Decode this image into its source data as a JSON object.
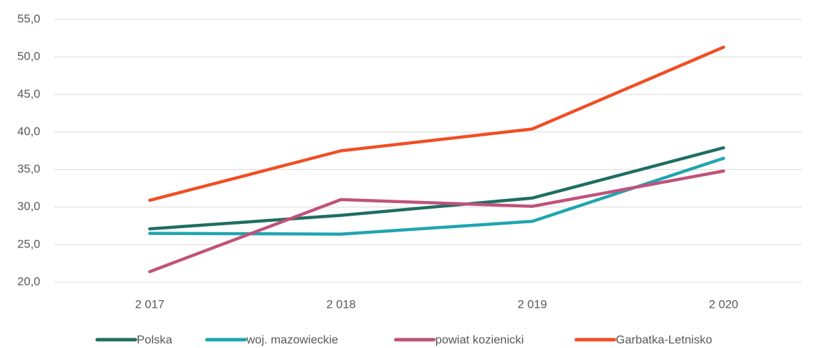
{
  "chart_data": {
    "type": "line",
    "categories": [
      "2 017",
      "2 018",
      "2 019",
      "2 020"
    ],
    "series": [
      {
        "name": "Polska",
        "color": "#1f6e62",
        "values": [
          27.1,
          28.9,
          31.2,
          37.9
        ]
      },
      {
        "name": "woj. mazowieckie",
        "color": "#1fa5b0",
        "values": [
          26.5,
          26.4,
          28.1,
          36.5
        ]
      },
      {
        "name": "powiat kozienicki",
        "color": "#c0527a",
        "values": [
          21.4,
          31.0,
          30.1,
          34.8
        ]
      },
      {
        "name": "Garbatka-Letnisko",
        "color": "#f04e23",
        "values": [
          30.9,
          37.5,
          40.4,
          51.3
        ]
      }
    ],
    "ylim": [
      20,
      55
    ],
    "yticks": [
      {
        "value": 20,
        "label": "20,0"
      },
      {
        "value": 25,
        "label": "25,0"
      },
      {
        "value": 30,
        "label": "30,0"
      },
      {
        "value": 35,
        "label": "35,0"
      },
      {
        "value": 40,
        "label": "40,0"
      },
      {
        "value": 45,
        "label": "45,0"
      },
      {
        "value": 50,
        "label": "50,0"
      },
      {
        "value": 55,
        "label": "55,0"
      }
    ],
    "grid": true,
    "legend": "bottom"
  }
}
